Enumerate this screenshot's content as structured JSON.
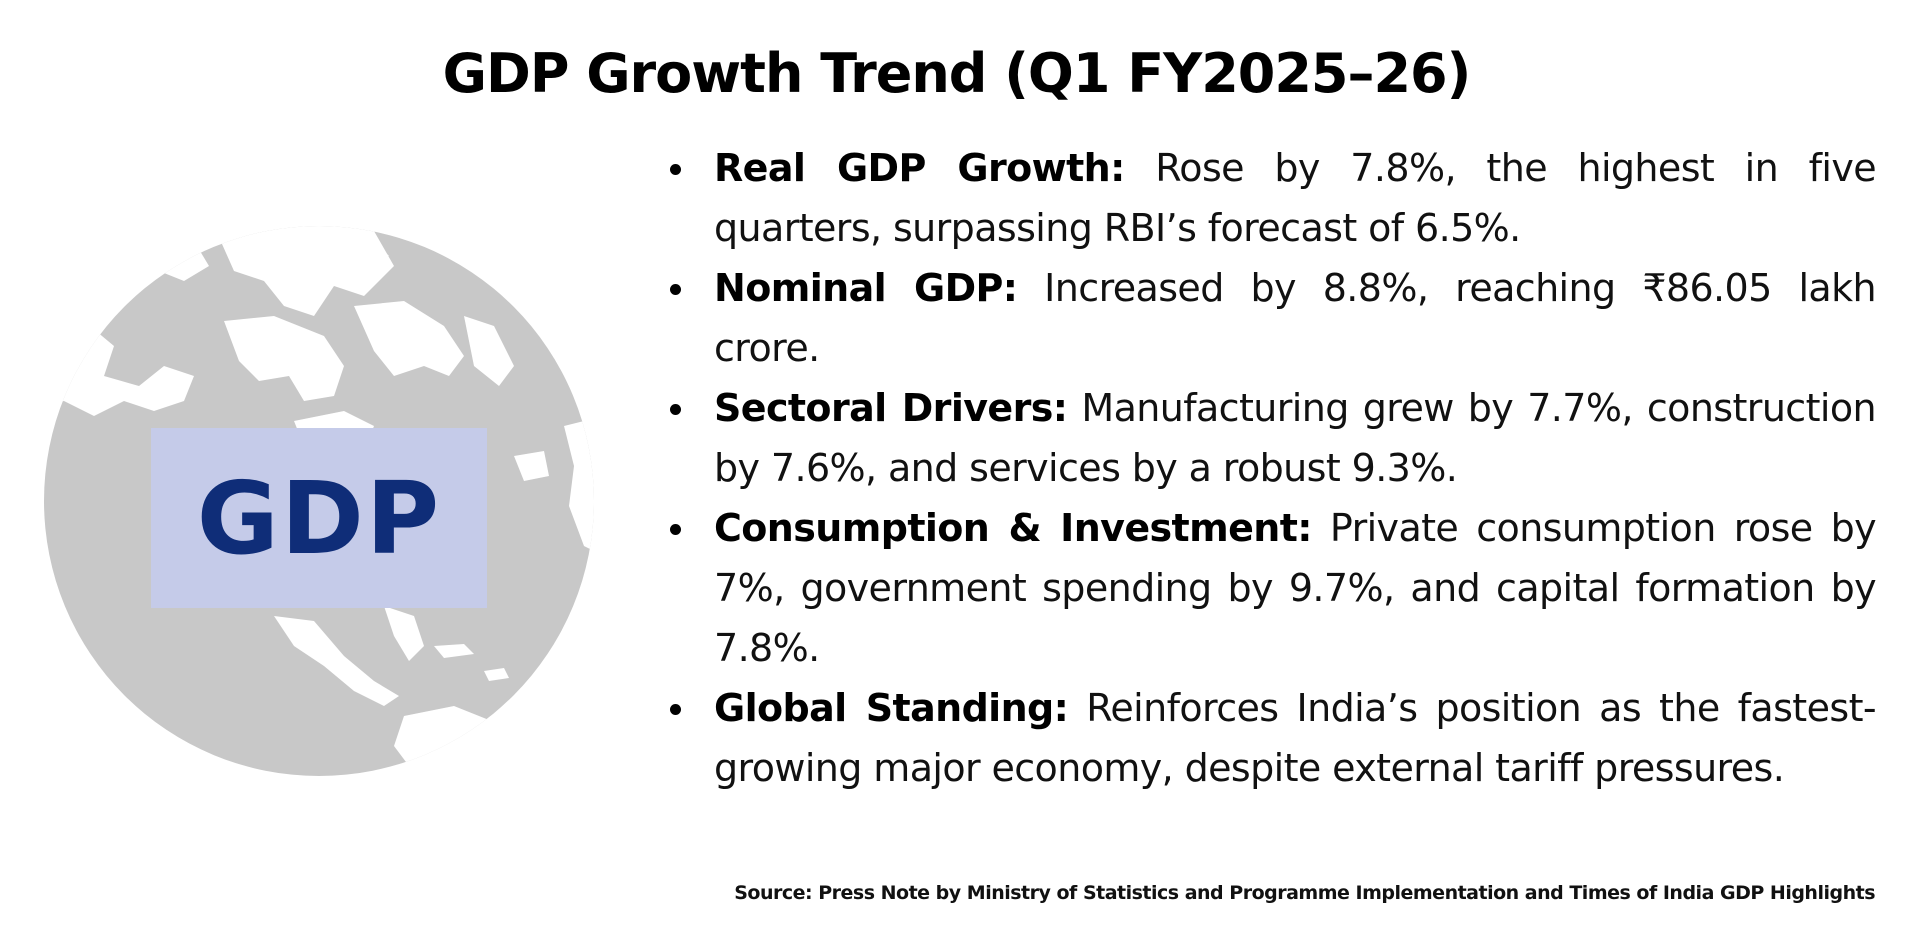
{
  "title": "GDP Growth Trend (Q1 FY2025–26)",
  "badge": {
    "label": "GDP",
    "background": "#c5cbe9",
    "text_color": "#0f2d78"
  },
  "globe": {
    "ocean_color": "#c8c8c8",
    "land_color": "#ffffff",
    "icon": "globe-icon"
  },
  "bullets": [
    {
      "heading": "Real GDP Growth:",
      "text": " Rose by 7.8%, the highest in five quarters, surpassing RBI’s forecast of 6.5%."
    },
    {
      "heading": "Nominal GDP:",
      "text": " Increased by 8.8%, reaching ₹86.05 lakh crore."
    },
    {
      "heading": "Sectoral Drivers:",
      "text": " Manufacturing grew by 7.7%, construction by 7.6%, and services by a robust 9.3%."
    },
    {
      "heading": "Consumption & Investment:",
      "text": " Private consumption rose by 7%, government spending by 9.7%, and capital formation by 7.8%."
    },
    {
      "heading": "Global Standing:",
      "text": " Reinforces India’s position as the fastest-growing major economy, despite external tariff pressures."
    }
  ],
  "source": "Source: Press Note by Ministry of Statistics and Programme Implementation and Times of India GDP Highlights"
}
